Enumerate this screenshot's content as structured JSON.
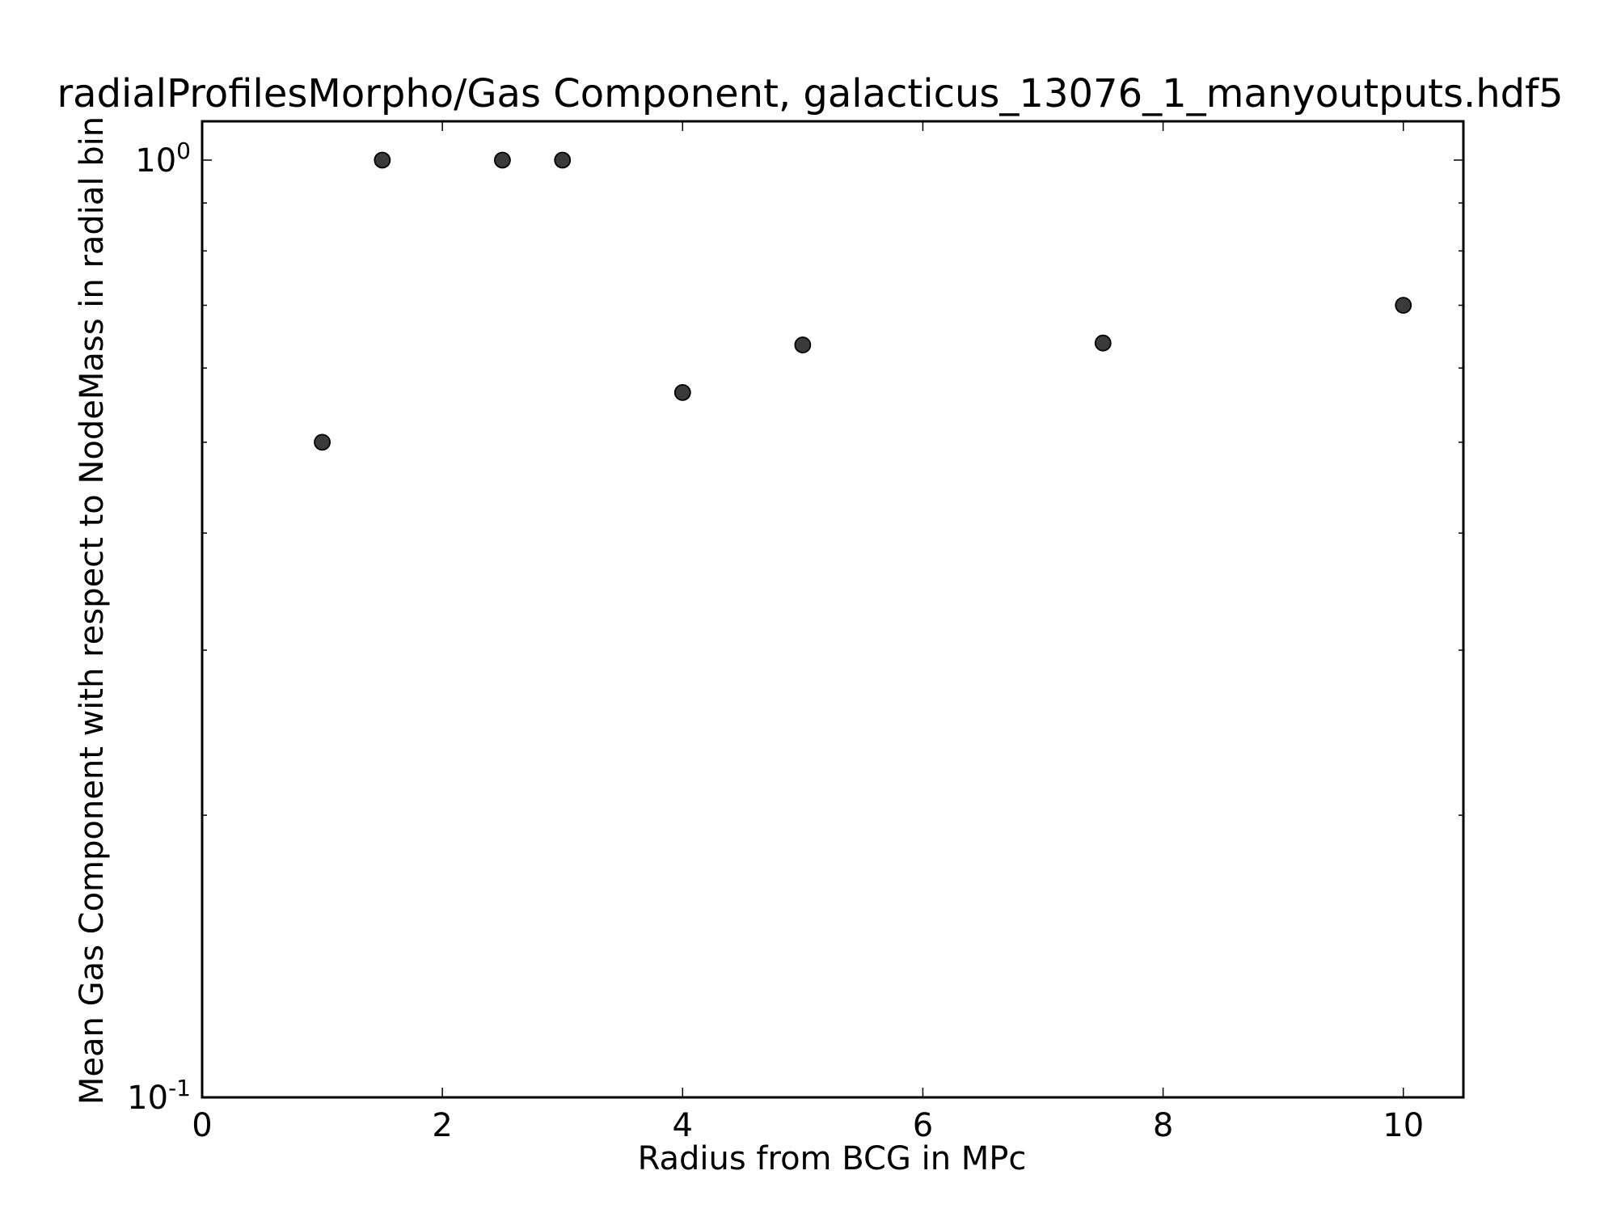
{
  "chart_data": {
    "type": "scatter",
    "title": "radialProfilesMorpho/Gas Component, galacticus_13076_1_manyoutputs.hdf5",
    "xlabel": "Radius from BCG in MPc",
    "ylabel": "Mean Gas Component with respect to NodeMass in radial bin",
    "xlim": [
      0,
      10.5
    ],
    "ylim": [
      0.1,
      1.1
    ],
    "yscale": "log",
    "grid": false,
    "x_ticks": [
      0,
      2,
      4,
      6,
      8,
      10
    ],
    "x_tick_labels": [
      "0",
      "2",
      "4",
      "6",
      "8",
      "10"
    ],
    "y_major_ticks": [
      {
        "value": 1.0,
        "base": "10",
        "exp": "0"
      },
      {
        "value": 0.1,
        "base": "10",
        "exp": "-1"
      }
    ],
    "y_minor_ticks": [
      0.2,
      0.3,
      0.4,
      0.5,
      0.6,
      0.7,
      0.8,
      0.9
    ],
    "marker_color": "#3a3a3a",
    "marker_edge_color": "#000000",
    "series": [
      {
        "x": [
          1.0,
          1.5,
          2.5,
          3.0,
          4.0,
          5.0,
          7.5,
          10.0
        ],
        "y": [
          0.5,
          1.0,
          1.0,
          1.0,
          0.565,
          0.635,
          0.638,
          0.7
        ]
      }
    ]
  }
}
